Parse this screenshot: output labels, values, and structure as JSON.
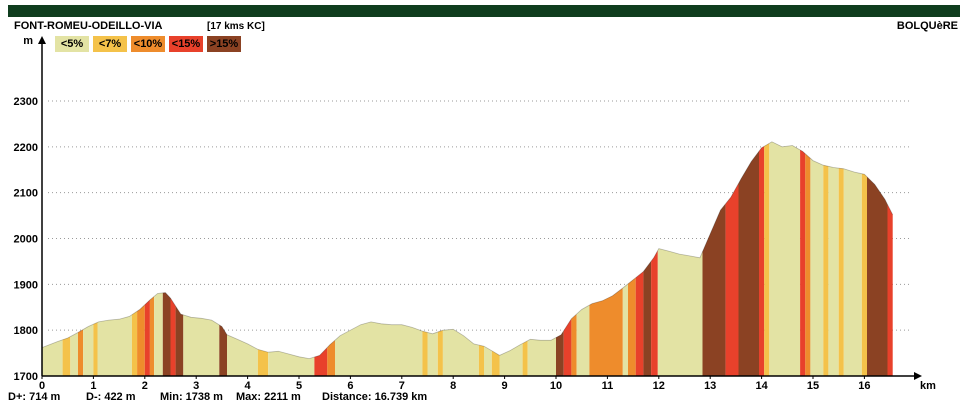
{
  "header": {
    "start": "FONT-ROMEU-ODEILLO-VIA",
    "note": "[17 kms KC]",
    "end": "BOLQUèRE"
  },
  "colors": {
    "band": "#0f3d1e"
  },
  "chart_data": {
    "type": "area",
    "xlabel": "km",
    "ylabel": "m",
    "xlim": [
      0,
      17
    ],
    "ylim": [
      1700,
      2350
    ],
    "x_ticks": [
      0,
      1,
      2,
      3,
      4,
      5,
      6,
      7,
      8,
      9,
      10,
      11,
      12,
      13,
      14,
      15,
      16
    ],
    "y_ticks": [
      1700,
      1800,
      1900,
      2000,
      2100,
      2200,
      2300
    ],
    "grid": "horizontal-dotted",
    "legend": [
      {
        "label": "<5%",
        "color": "#e3e3a4"
      },
      {
        "label": "<7%",
        "color": "#f4c24a"
      },
      {
        "label": "<10%",
        "color": "#ee8c2c"
      },
      {
        "label": "<15%",
        "color": "#e8412b"
      },
      {
        "label": ">15%",
        "color": "#8b4223"
      }
    ],
    "profile": [
      [
        0,
        1762
      ],
      [
        0.3,
        1775
      ],
      [
        0.5,
        1783
      ],
      [
        0.7,
        1795
      ],
      [
        0.9,
        1808
      ],
      [
        1.1,
        1818
      ],
      [
        1.3,
        1822
      ],
      [
        1.5,
        1824
      ],
      [
        1.7,
        1830
      ],
      [
        1.9,
        1845
      ],
      [
        2.1,
        1866
      ],
      [
        2.25,
        1880
      ],
      [
        2.4,
        1882
      ],
      [
        2.5,
        1870
      ],
      [
        2.7,
        1835
      ],
      [
        2.9,
        1828
      ],
      [
        3.1,
        1826
      ],
      [
        3.3,
        1822
      ],
      [
        3.5,
        1808
      ],
      [
        3.6,
        1790
      ],
      [
        3.8,
        1780
      ],
      [
        4.0,
        1770
      ],
      [
        4.2,
        1758
      ],
      [
        4.4,
        1752
      ],
      [
        4.6,
        1754
      ],
      [
        4.8,
        1748
      ],
      [
        5.0,
        1742
      ],
      [
        5.2,
        1738
      ],
      [
        5.4,
        1745
      ],
      [
        5.6,
        1768
      ],
      [
        5.8,
        1788
      ],
      [
        6.0,
        1800
      ],
      [
        6.2,
        1812
      ],
      [
        6.4,
        1818
      ],
      [
        6.6,
        1814
      ],
      [
        6.8,
        1812
      ],
      [
        7.0,
        1812
      ],
      [
        7.2,
        1806
      ],
      [
        7.4,
        1798
      ],
      [
        7.6,
        1792
      ],
      [
        7.8,
        1800
      ],
      [
        8.0,
        1802
      ],
      [
        8.2,
        1788
      ],
      [
        8.4,
        1770
      ],
      [
        8.6,
        1765
      ],
      [
        8.8,
        1752
      ],
      [
        8.9,
        1745
      ],
      [
        9.1,
        1755
      ],
      [
        9.3,
        1768
      ],
      [
        9.5,
        1780
      ],
      [
        9.7,
        1778
      ],
      [
        9.9,
        1778
      ],
      [
        10.1,
        1790
      ],
      [
        10.3,
        1825
      ],
      [
        10.5,
        1845
      ],
      [
        10.7,
        1858
      ],
      [
        10.9,
        1864
      ],
      [
        11.1,
        1875
      ],
      [
        11.3,
        1892
      ],
      [
        11.5,
        1910
      ],
      [
        11.7,
        1928
      ],
      [
        11.9,
        1958
      ],
      [
        12.0,
        1978
      ],
      [
        12.2,
        1972
      ],
      [
        12.4,
        1966
      ],
      [
        12.6,
        1962
      ],
      [
        12.8,
        1958
      ],
      [
        13.0,
        2010
      ],
      [
        13.2,
        2062
      ],
      [
        13.4,
        2090
      ],
      [
        13.6,
        2130
      ],
      [
        13.8,
        2168
      ],
      [
        14.0,
        2198
      ],
      [
        14.2,
        2211
      ],
      [
        14.4,
        2200
      ],
      [
        14.6,
        2203
      ],
      [
        14.8,
        2190
      ],
      [
        15.0,
        2170
      ],
      [
        15.2,
        2160
      ],
      [
        15.4,
        2155
      ],
      [
        15.6,
        2152
      ],
      [
        15.8,
        2145
      ],
      [
        16.0,
        2140
      ],
      [
        16.2,
        2118
      ],
      [
        16.4,
        2085
      ],
      [
        16.55,
        2052
      ]
    ],
    "segments": [
      {
        "from": 0.0,
        "to": 0.4,
        "class": "<5%"
      },
      {
        "from": 0.4,
        "to": 0.55,
        "class": "<7%"
      },
      {
        "from": 0.55,
        "to": 0.7,
        "class": "<5%"
      },
      {
        "from": 0.7,
        "to": 0.8,
        "class": "<10%"
      },
      {
        "from": 0.8,
        "to": 1.0,
        "class": "<5%"
      },
      {
        "from": 1.0,
        "to": 1.08,
        "class": "<7%"
      },
      {
        "from": 1.08,
        "to": 1.75,
        "class": "<5%"
      },
      {
        "from": 1.75,
        "to": 1.85,
        "class": "<7%"
      },
      {
        "from": 1.85,
        "to": 2.0,
        "class": "<10%"
      },
      {
        "from": 2.0,
        "to": 2.1,
        "class": "<15%"
      },
      {
        "from": 2.1,
        "to": 2.18,
        "class": "<10%"
      },
      {
        "from": 2.18,
        "to": 2.35,
        "class": "<5%"
      },
      {
        "from": 2.35,
        "to": 2.5,
        "class": ">15%"
      },
      {
        "from": 2.5,
        "to": 2.6,
        "class": "<15%"
      },
      {
        "from": 2.6,
        "to": 2.75,
        "class": ">15%"
      },
      {
        "from": 2.75,
        "to": 3.45,
        "class": "<5%"
      },
      {
        "from": 3.45,
        "to": 3.6,
        "class": ">15%"
      },
      {
        "from": 3.6,
        "to": 4.2,
        "class": "<5%"
      },
      {
        "from": 4.2,
        "to": 4.4,
        "class": "<7%"
      },
      {
        "from": 4.4,
        "to": 5.3,
        "class": "<5%"
      },
      {
        "from": 5.3,
        "to": 5.55,
        "class": "<15%"
      },
      {
        "from": 5.55,
        "to": 5.7,
        "class": "<10%"
      },
      {
        "from": 5.7,
        "to": 7.4,
        "class": "<5%"
      },
      {
        "from": 7.4,
        "to": 7.5,
        "class": "<7%"
      },
      {
        "from": 7.5,
        "to": 7.7,
        "class": "<5%"
      },
      {
        "from": 7.7,
        "to": 7.8,
        "class": "<7%"
      },
      {
        "from": 7.8,
        "to": 8.5,
        "class": "<5%"
      },
      {
        "from": 8.5,
        "to": 8.6,
        "class": "<7%"
      },
      {
        "from": 8.6,
        "to": 8.75,
        "class": "<5%"
      },
      {
        "from": 8.75,
        "to": 8.9,
        "class": "<7%"
      },
      {
        "from": 8.9,
        "to": 9.35,
        "class": "<5%"
      },
      {
        "from": 9.35,
        "to": 9.45,
        "class": "<7%"
      },
      {
        "from": 9.45,
        "to": 10.0,
        "class": "<5%"
      },
      {
        "from": 10.0,
        "to": 10.15,
        "class": ">15%"
      },
      {
        "from": 10.15,
        "to": 10.3,
        "class": "<15%"
      },
      {
        "from": 10.3,
        "to": 10.4,
        "class": "<10%"
      },
      {
        "from": 10.4,
        "to": 10.65,
        "class": "<5%"
      },
      {
        "from": 10.65,
        "to": 11.3,
        "class": "<10%"
      },
      {
        "from": 11.3,
        "to": 11.4,
        "class": "<5%"
      },
      {
        "from": 11.4,
        "to": 11.55,
        "class": "<10%"
      },
      {
        "from": 11.55,
        "to": 11.7,
        "class": "<15%"
      },
      {
        "from": 11.7,
        "to": 11.85,
        "class": ">15%"
      },
      {
        "from": 11.85,
        "to": 11.98,
        "class": "<15%"
      },
      {
        "from": 11.98,
        "to": 12.85,
        "class": "<5%"
      },
      {
        "from": 12.85,
        "to": 13.3,
        "class": ">15%"
      },
      {
        "from": 13.3,
        "to": 13.55,
        "class": "<15%"
      },
      {
        "from": 13.55,
        "to": 13.95,
        "class": ">15%"
      },
      {
        "from": 13.95,
        "to": 14.05,
        "class": "<15%"
      },
      {
        "from": 14.05,
        "to": 14.15,
        "class": "<7%"
      },
      {
        "from": 14.15,
        "to": 14.75,
        "class": "<5%"
      },
      {
        "from": 14.75,
        "to": 14.85,
        "class": "<15%"
      },
      {
        "from": 14.85,
        "to": 14.95,
        "class": "<10%"
      },
      {
        "from": 14.95,
        "to": 15.2,
        "class": "<5%"
      },
      {
        "from": 15.2,
        "to": 15.3,
        "class": "<7%"
      },
      {
        "from": 15.3,
        "to": 15.5,
        "class": "<5%"
      },
      {
        "from": 15.5,
        "to": 15.6,
        "class": "<7%"
      },
      {
        "from": 15.6,
        "to": 15.95,
        "class": "<5%"
      },
      {
        "from": 15.95,
        "to": 16.05,
        "class": "<7%"
      },
      {
        "from": 16.05,
        "to": 16.45,
        "class": ">15%"
      },
      {
        "from": 16.45,
        "to": 16.55,
        "class": "<15%"
      }
    ]
  },
  "stats": {
    "d_plus": "D+: 714 m",
    "d_minus": "D-: 422 m",
    "min": "Min: 1738 m",
    "max": "Max: 2211 m",
    "distance": "Distance: 16.739 km"
  }
}
